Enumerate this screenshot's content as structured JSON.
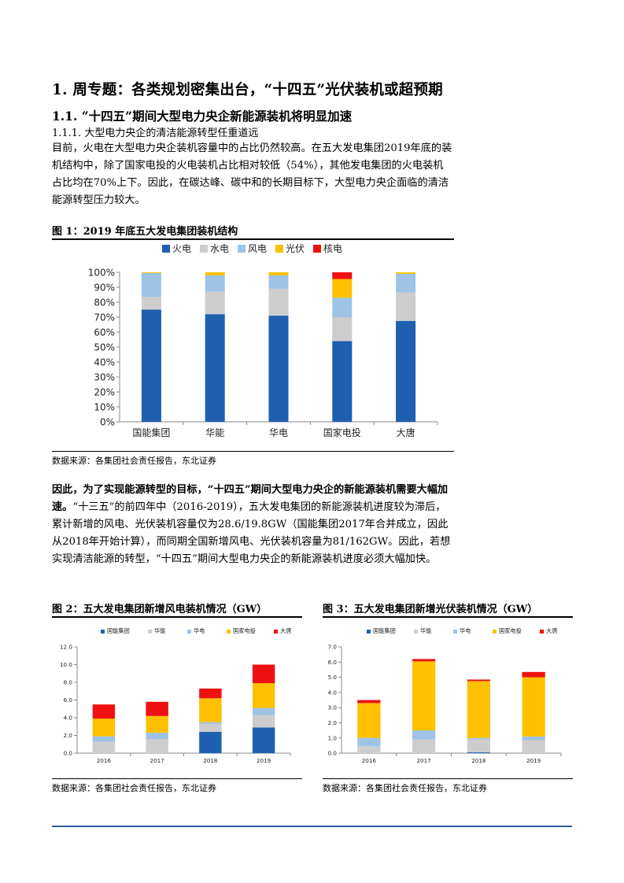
{
  "section_title": "1. 周专题：各类规划密集出台，“十四五”光伏装机或超预期",
  "subsection_title": "1.1.  “十四五”期间大型电力央企新能源装机将明显加速",
  "subsubsection_title": "1.1.1.   大型电力央企的清洁能源转型任重道远",
  "para1": "目前，火电在大型电力央企装机容量中的占比仍然较高。在五大发电集团2019年底的装机结构中，除了国家电投的火电装机占比相对较低（54%），其他发电集团的火电装机占比均在70%上下。因此，在碳达峰、碳中和的长期目标下，大型电力央企面临的清洁能源转型压力较大。",
  "para2_bold": "因此，为了实现能源转型的目标，“十四五”期间大型电力央企的新能源装机需要大幅加速。",
  "para2_rest": "“十三五”的前四年中（2016-2019），五大发电集团的新能源装机进度较为滞后，累计新增的风电、光伏装机容量仅为28.6/19.8GW（国能集团2017年合并成立，因此从2018年开始计算），而同期全国新增风电、光伏装机容量为81/162GW。因此，若想实现清洁能源的转型，“十四五”期间大型电力央企的新能源装机进度必须大幅加快。",
  "fig1": {
    "title": "图 1：2019 年底五大发电集团装机结构",
    "source": "数据来源：各集团社会责任报告，东北证券"
  },
  "fig2": {
    "title": "图 2：五大发电集团新增风电装机情况（GW）",
    "source": "数据来源：各集团社会责任报告，东北证券"
  },
  "fig3": {
    "title": "图 3：五大发电集团新增光伏装机情况（GW）",
    "source": "数据来源：各集团社会责任报告，东北证券"
  },
  "chart_data": [
    {
      "type": "bar",
      "stacked": true,
      "categories": [
        "国能集团",
        "华能",
        "华电",
        "国家电投",
        "大唐"
      ],
      "series": [
        {
          "name": "火电",
          "color": "#1f5fb0",
          "values": [
            75,
            72,
            71,
            54,
            67.5
          ]
        },
        {
          "name": "水电",
          "color": "#cdcdcd",
          "values": [
            8.5,
            15,
            18,
            16,
            19
          ]
        },
        {
          "name": "风电",
          "color": "#9dc3e6",
          "values": [
            16,
            11,
            9,
            13,
            12.5
          ]
        },
        {
          "name": "光伏",
          "color": "#ffc000",
          "values": [
            0.5,
            2,
            2,
            12.5,
            1
          ]
        },
        {
          "name": "核电",
          "color": "#ee1111",
          "values": [
            0,
            0,
            0,
            4.5,
            0
          ]
        }
      ],
      "ylim": [
        0,
        100
      ],
      "yticks": [
        "0%",
        "10%",
        "20%",
        "30%",
        "40%",
        "50%",
        "60%",
        "70%",
        "80%",
        "90%",
        "100%"
      ],
      "legend": "top"
    },
    {
      "type": "bar",
      "stacked": true,
      "categories": [
        "2016",
        "2017",
        "2018",
        "2019"
      ],
      "series": [
        {
          "name": "国能集团",
          "color": "#1f5fb0",
          "values": [
            0,
            0,
            2.4,
            2.9
          ]
        },
        {
          "name": "华能",
          "color": "#cdcdcd",
          "values": [
            1.3,
            1.6,
            0.9,
            1.4
          ]
        },
        {
          "name": "华电",
          "color": "#9dc3e6",
          "values": [
            0.6,
            0.7,
            0.2,
            0.8
          ]
        },
        {
          "name": "国家电投",
          "color": "#ffc000",
          "values": [
            2.0,
            1.9,
            2.7,
            2.8
          ]
        },
        {
          "name": "大唐",
          "color": "#ee1111",
          "values": [
            1.6,
            1.6,
            1.1,
            2.1
          ]
        }
      ],
      "ylim": [
        0,
        12
      ],
      "yticks": [
        "0.0",
        "2.0",
        "4.0",
        "6.0",
        "8.0",
        "10.0",
        "12.0"
      ],
      "legend": "top"
    },
    {
      "type": "bar",
      "stacked": true,
      "categories": [
        "2016",
        "2017",
        "2018",
        "2019"
      ],
      "series": [
        {
          "name": "国能集团",
          "color": "#1f5fb0",
          "values": [
            0,
            0,
            0.05,
            0
          ]
        },
        {
          "name": "华能",
          "color": "#cdcdcd",
          "values": [
            0.45,
            0.9,
            0.85,
            0.85
          ]
        },
        {
          "name": "华电",
          "color": "#9dc3e6",
          "values": [
            0.55,
            0.6,
            0.1,
            0.25
          ]
        },
        {
          "name": "国家电投",
          "color": "#ffc000",
          "values": [
            2.3,
            4.55,
            3.75,
            3.9
          ]
        },
        {
          "name": "大唐",
          "color": "#ee1111",
          "values": [
            0.2,
            0.15,
            0.1,
            0.35
          ]
        }
      ],
      "ylim": [
        0,
        7
      ],
      "yticks": [
        "0.0",
        "1.0",
        "2.0",
        "3.0",
        "4.0",
        "5.0",
        "6.0",
        "7.0"
      ],
      "legend": "top"
    }
  ]
}
